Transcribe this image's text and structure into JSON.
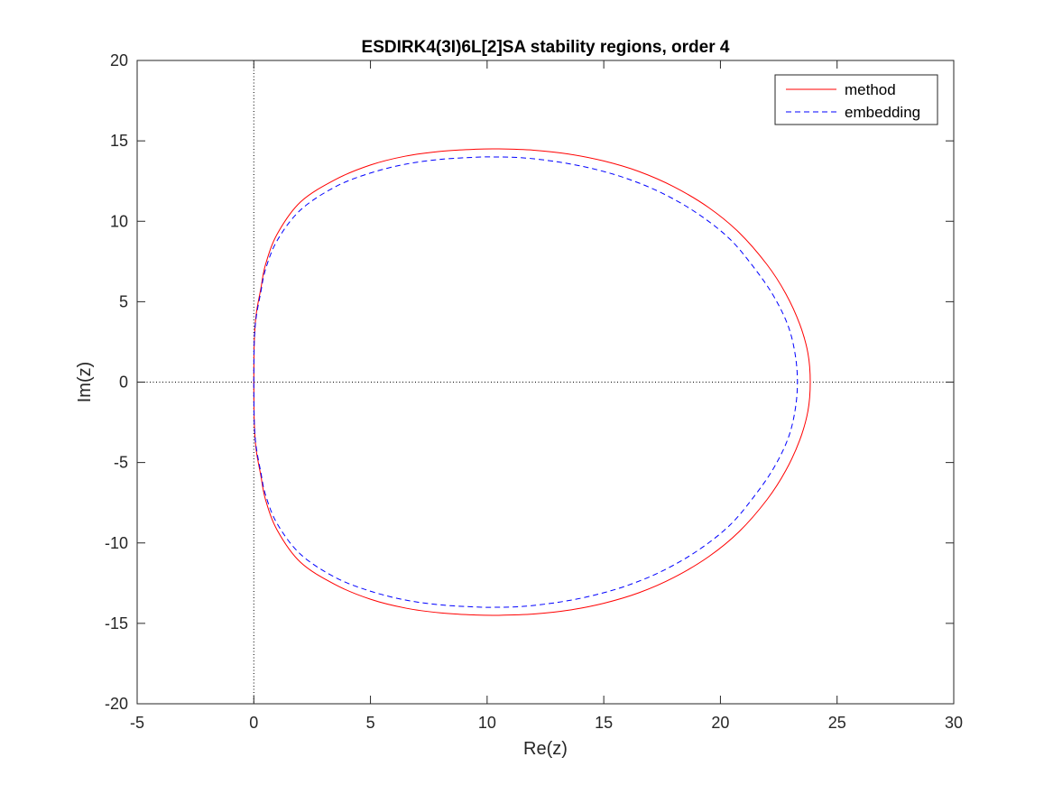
{
  "chart_data": {
    "type": "line",
    "title": "ESDIRK4(3I)6L[2]SA stability regions, order 4",
    "xlabel": "Re(z)",
    "ylabel": "Im(z)",
    "xlim": [
      -5,
      30
    ],
    "ylim": [
      -20,
      20
    ],
    "xticks": [
      -5,
      0,
      5,
      10,
      15,
      20,
      25,
      30
    ],
    "yticks": [
      -20,
      -15,
      -10,
      -5,
      0,
      5,
      10,
      15,
      20
    ],
    "xtick_labels": [
      "-5",
      "0",
      "5",
      "10",
      "15",
      "20",
      "25",
      "30"
    ],
    "ytick_labels": [
      "-20",
      "-15",
      "-10",
      "-5",
      "0",
      "5",
      "10",
      "15",
      "20"
    ],
    "grid": false,
    "legend_position": "top-right",
    "reference_lines": [
      {
        "orientation": "horizontal",
        "value": 0,
        "style": "dotted",
        "color": "#000000"
      },
      {
        "orientation": "vertical",
        "value": 0,
        "style": "dotted",
        "color": "#000000"
      }
    ],
    "series": [
      {
        "name": "method",
        "color": "#ff0000",
        "style": "solid",
        "x": [
          0.0,
          0.02,
          0.1,
          0.3,
          0.5,
          1.0,
          2.0,
          3.5,
          5.0,
          6.5,
          8.0,
          9.5,
          10.5,
          12.0,
          13.5,
          15.0,
          16.5,
          18.0,
          19.5,
          20.8,
          22.0,
          22.8,
          23.4,
          23.75,
          23.85,
          23.75,
          23.4,
          22.8,
          22.0,
          20.8,
          19.5,
          18.0,
          16.5,
          15.0,
          13.5,
          12.0,
          10.5,
          9.5,
          8.0,
          6.5,
          5.0,
          3.5,
          2.0,
          1.0,
          0.5,
          0.3,
          0.1,
          0.02,
          0.0
        ],
        "y": [
          0.0,
          2.5,
          4.2,
          5.8,
          7.3,
          9.2,
          11.2,
          12.6,
          13.5,
          14.05,
          14.35,
          14.48,
          14.5,
          14.42,
          14.18,
          13.75,
          13.1,
          12.15,
          10.85,
          9.3,
          7.3,
          5.5,
          3.6,
          1.8,
          0.0,
          -1.8,
          -3.6,
          -5.5,
          -7.3,
          -9.3,
          -10.85,
          -12.15,
          -13.1,
          -13.75,
          -14.18,
          -14.42,
          -14.5,
          -14.48,
          -14.35,
          -14.05,
          -13.5,
          -12.6,
          -11.2,
          -9.2,
          -7.3,
          -5.8,
          -4.2,
          -2.5,
          0.0
        ]
      },
      {
        "name": "embedding",
        "color": "#0000ff",
        "style": "dashed",
        "x": [
          0.0,
          0.02,
          0.1,
          0.3,
          0.5,
          1.0,
          2.0,
          3.5,
          5.0,
          6.5,
          8.0,
          9.5,
          10.3,
          11.5,
          13.0,
          14.5,
          16.0,
          17.5,
          19.0,
          20.4,
          21.5,
          22.3,
          22.9,
          23.2,
          23.3,
          23.2,
          22.9,
          22.3,
          21.5,
          20.4,
          19.0,
          17.5,
          16.0,
          14.5,
          13.0,
          11.5,
          10.3,
          9.5,
          8.0,
          6.5,
          5.0,
          3.5,
          2.0,
          1.0,
          0.5,
          0.3,
          0.1,
          0.02,
          0.0
        ],
        "y": [
          0.0,
          2.5,
          4.0,
          5.6,
          7.0,
          8.8,
          10.7,
          12.15,
          13.0,
          13.55,
          13.85,
          13.98,
          14.0,
          13.95,
          13.7,
          13.28,
          12.65,
          11.75,
          10.5,
          8.9,
          7.0,
          5.3,
          3.5,
          1.75,
          0.0,
          -1.75,
          -3.5,
          -5.3,
          -7.0,
          -8.9,
          -10.5,
          -11.75,
          -12.65,
          -13.28,
          -13.7,
          -13.95,
          -14.0,
          -13.98,
          -13.85,
          -13.55,
          -13.0,
          -12.15,
          -10.7,
          -8.8,
          -7.0,
          -5.6,
          -4.0,
          -2.5,
          0.0
        ]
      }
    ]
  }
}
